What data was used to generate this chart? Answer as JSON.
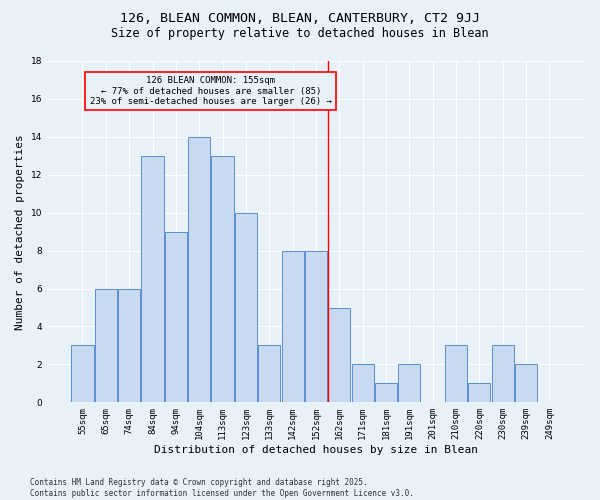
{
  "title_line1": "126, BLEAN COMMON, BLEAN, CANTERBURY, CT2 9JJ",
  "title_line2": "Size of property relative to detached houses in Blean",
  "xlabel": "Distribution of detached houses by size in Blean",
  "ylabel": "Number of detached properties",
  "categories": [
    "55sqm",
    "65sqm",
    "74sqm",
    "84sqm",
    "94sqm",
    "104sqm",
    "113sqm",
    "123sqm",
    "133sqm",
    "142sqm",
    "152sqm",
    "162sqm",
    "171sqm",
    "181sqm",
    "191sqm",
    "201sqm",
    "210sqm",
    "220sqm",
    "230sqm",
    "239sqm",
    "249sqm"
  ],
  "values": [
    3,
    6,
    6,
    13,
    9,
    14,
    13,
    10,
    3,
    8,
    8,
    5,
    2,
    1,
    2,
    0,
    3,
    1,
    3,
    2,
    0
  ],
  "bar_color": "#c9d9f0",
  "bar_edge_color": "#5a8fd4",
  "bg_color": "#e8f0f8",
  "grid_color": "#ffffff",
  "annotation_text_line1": "126 BLEAN COMMON: 155sqm",
  "annotation_text_line2": "← 77% of detached houses are smaller (85)",
  "annotation_text_line3": "23% of semi-detached houses are larger (26) →",
  "vline_x_index": 10.5,
  "ylim": [
    0,
    18
  ],
  "yticks": [
    0,
    2,
    4,
    6,
    8,
    10,
    12,
    14,
    16,
    18
  ],
  "footnote": "Contains HM Land Registry data © Crown copyright and database right 2025.\nContains public sector information licensed under the Open Government Licence v3.0.",
  "annotation_fontsize": 6.5,
  "title_fontsize1": 9.5,
  "title_fontsize2": 8.5,
  "xlabel_fontsize": 8,
  "ylabel_fontsize": 8,
  "tick_fontsize": 6.5,
  "footnote_fontsize": 5.5
}
